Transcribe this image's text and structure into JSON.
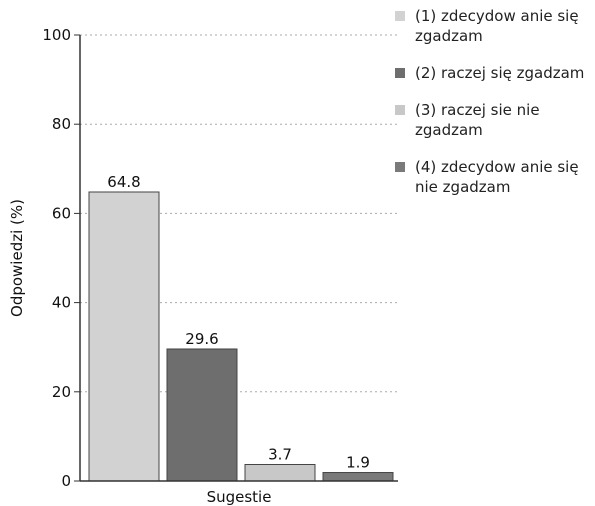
{
  "chart_data": {
    "type": "bar",
    "categories": [
      "(1) zdecydow anie się zgadzam",
      "(2) raczej się zgadzam",
      "(3) raczej sie nie zgadzam",
      "(4) zdecydow anie się nie zgadzam"
    ],
    "values": [
      64.8,
      29.6,
      3.7,
      1.9
    ],
    "value_labels": [
      "64.8",
      "29.6",
      "3.7",
      "1.9"
    ],
    "colors": [
      "#d2d2d2",
      "#6e6e6e",
      "#c8c8c8",
      "#7a7a7a"
    ],
    "xlabel": "Sugestie",
    "ylabel": "Odpowiedzi (%)",
    "ylim": [
      0,
      100
    ],
    "yticks": [
      "0",
      "20",
      "40",
      "60",
      "80",
      "100"
    ],
    "grid": true,
    "legend_position": "right"
  }
}
